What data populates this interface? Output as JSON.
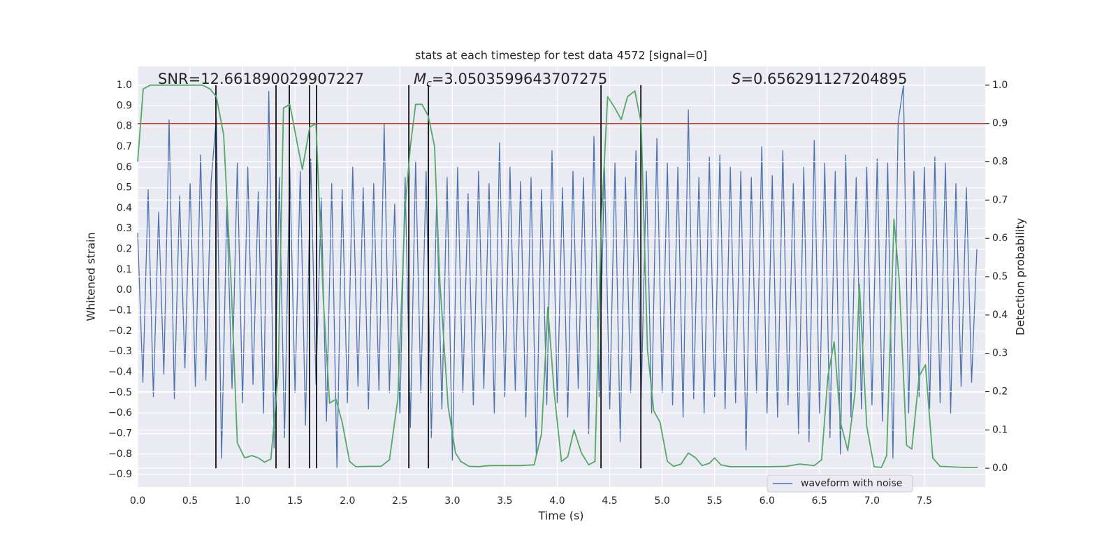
{
  "chart_data": {
    "type": "line",
    "title": "stats at each timestep for test data 4572 [signal=0]",
    "xlabel": "Time (s)",
    "ylabel": "Whitened strain",
    "y2label": "Detection probability",
    "annotations": [
      {
        "text": "SNR=12.661890029907227"
      },
      {
        "symbol": "M",
        "subscript": "c",
        "text": "=3.0503599643707275"
      },
      {
        "symbol": "S",
        "text": "=0.656291127204895"
      }
    ],
    "xlim": [
      0,
      8.08
    ],
    "ylim": [
      -0.961,
      1.092
    ],
    "y2lim": [
      -0.049,
      1.049
    ],
    "grid": true,
    "legend": "lower right",
    "xticks": [
      {
        "value": 0,
        "label": "0.0"
      },
      0.5,
      {
        "value": 1,
        "label": "1.0"
      },
      1.5,
      {
        "value": 2,
        "label": "2.0"
      },
      2.5,
      {
        "value": 3,
        "label": "3.0"
      },
      3.5,
      {
        "value": 4,
        "label": "4.0"
      },
      4.5,
      {
        "value": 5,
        "label": "5.0"
      },
      5.5,
      {
        "value": 6,
        "label": "6.0"
      },
      6.5,
      {
        "value": 7,
        "label": "7.0"
      },
      7.5
    ],
    "yticks": [
      {
        "value": 1,
        "label": "1.0"
      },
      0.9,
      0.8,
      0.7,
      0.6,
      0.5,
      0.4,
      0.3,
      0.2,
      0.1,
      {
        "value": 0,
        "label": "0.0"
      },
      {
        "value": -0.1,
        "label": "−0.1"
      },
      {
        "value": -0.2,
        "label": "−0.2"
      },
      {
        "value": -0.3,
        "label": "−0.3"
      },
      {
        "value": -0.4,
        "label": "−0.4"
      },
      {
        "value": -0.5,
        "label": "−0.5"
      },
      {
        "value": -0.6,
        "label": "−0.6"
      },
      {
        "value": -0.7,
        "label": "−0.7"
      },
      {
        "value": -0.8,
        "label": "−0.8"
      },
      {
        "value": -0.9,
        "label": "−0.9"
      }
    ],
    "y2ticks": [
      {
        "value": 1,
        "label": "1.0"
      },
      0.9,
      0.8,
      0.7,
      0.6,
      0.5,
      0.4,
      0.3,
      0.2,
      0.1,
      {
        "value": 0,
        "label": "0.0"
      }
    ],
    "threshold": {
      "value": 0.9,
      "axis": "y2",
      "color": "#c0392b"
    },
    "vlines": {
      "axis": "y2",
      "ymin": 0,
      "ymax": 1,
      "color": "#111111",
      "x": [
        0.746,
        1.319,
        1.446,
        1.639,
        1.706,
        2.585,
        2.772,
        4.417,
        4.797
      ]
    },
    "series": [
      {
        "name": "waveform with noise",
        "color": "#4c72b0",
        "x": [
          0,
          0.05,
          0.1,
          0.15,
          0.2,
          0.25,
          0.3,
          0.35,
          0.4,
          0.45,
          0.5,
          0.55,
          0.6,
          0.65,
          0.7,
          0.75,
          0.8,
          0.85,
          0.9,
          0.95,
          1,
          1.05,
          1.1,
          1.15,
          1.2,
          1.25,
          1.3,
          1.35,
          1.4,
          1.45,
          1.5,
          1.55,
          1.6,
          1.65,
          1.7,
          1.75,
          1.8,
          1.85,
          1.9,
          1.95,
          2,
          2.05,
          2.1,
          2.15,
          2.2,
          2.25,
          2.3,
          2.35,
          2.4,
          2.45,
          2.5,
          2.55,
          2.6,
          2.65,
          2.7,
          2.75,
          2.8,
          2.85,
          2.9,
          2.95,
          3,
          3.05,
          3.1,
          3.15,
          3.2,
          3.25,
          3.3,
          3.35,
          3.4,
          3.45,
          3.5,
          3.55,
          3.6,
          3.65,
          3.7,
          3.75,
          3.8,
          3.85,
          3.9,
          3.95,
          4,
          4.05,
          4.1,
          4.15,
          4.2,
          4.25,
          4.3,
          4.35,
          4.4,
          4.45,
          4.5,
          4.55,
          4.6,
          4.65,
          4.7,
          4.75,
          4.8,
          4.85,
          4.9,
          4.95,
          5,
          5.05,
          5.1,
          5.15,
          5.2,
          5.25,
          5.3,
          5.35,
          5.4,
          5.45,
          5.5,
          5.55,
          5.6,
          5.65,
          5.7,
          5.75,
          5.8,
          5.85,
          5.9,
          5.95,
          6,
          6.05,
          6.1,
          6.15,
          6.2,
          6.25,
          6.3,
          6.35,
          6.4,
          6.45,
          6.5,
          6.55,
          6.6,
          6.65,
          6.7,
          6.75,
          6.8,
          6.85,
          6.9,
          6.95,
          7,
          7.05,
          7.1,
          7.15,
          7.2,
          7.25,
          7.3,
          7.35,
          7.4,
          7.45,
          7.5,
          7.55,
          7.6,
          7.65,
          7.7,
          7.75,
          7.8,
          7.85,
          7.9,
          7.95,
          8
        ],
        "values": [
          0.28,
          -0.45,
          0.49,
          -0.52,
          0.38,
          -0.41,
          0.83,
          -0.53,
          0.46,
          -0.38,
          0.52,
          -0.47,
          0.66,
          -0.44,
          0.53,
          0.84,
          -0.82,
          0.41,
          -0.48,
          0.62,
          -0.55,
          0.6,
          -0.46,
          0.48,
          -0.6,
          0.97,
          -0.77,
          0.55,
          -0.72,
          0.6,
          -0.5,
          0.58,
          -0.66,
          0.64,
          -0.46,
          0.45,
          -0.64,
          0.52,
          -0.87,
          0.49,
          -0.55,
          0.6,
          -0.47,
          0.5,
          -0.58,
          0.52,
          -0.49,
          0.81,
          -0.5,
          0.42,
          -0.6,
          0.55,
          -0.67,
          0.63,
          -0.5,
          0.58,
          -0.72,
          0.45,
          -0.58,
          0.55,
          -0.83,
          0.6,
          -0.5,
          0.47,
          -0.56,
          0.58,
          -0.48,
          0.52,
          -0.6,
          0.72,
          -0.52,
          0.6,
          -0.49,
          0.53,
          -0.62,
          0.55,
          -0.81,
          0.49,
          -0.56,
          0.68,
          -0.55,
          0.5,
          -0.62,
          0.58,
          -0.48,
          0.55,
          -0.7,
          0.75,
          -0.52,
          0.6,
          -0.58,
          0.62,
          -0.74,
          0.55,
          -0.5,
          0.68,
          -0.53,
          0.58,
          -0.6,
          0.74,
          -0.5,
          0.62,
          -0.56,
          0.6,
          -0.62,
          0.88,
          -0.53,
          0.55,
          -0.6,
          0.65,
          -0.52,
          0.66,
          -0.58,
          0.6,
          -0.55,
          0.58,
          -0.78,
          0.55,
          -0.5,
          0.7,
          -0.6,
          0.56,
          -0.62,
          0.68,
          -0.56,
          0.52,
          -0.7,
          0.6,
          -0.74,
          0.73,
          -0.6,
          0.62,
          -0.72,
          0.58,
          -0.8,
          0.66,
          -0.62,
          0.55,
          -0.58,
          0.6,
          -0.56,
          0.64,
          -0.64,
          0.62,
          -0.82,
          0.82,
          1.0,
          -0.6,
          0.58,
          -0.52,
          0.6,
          -0.58,
          0.65,
          -0.55,
          0.62,
          -0.6,
          0.52,
          -0.47,
          0.5,
          -0.45,
          0.2
        ]
      },
      {
        "color": "#55a868",
        "axis": "y2",
        "x": [
          0,
          0.053,
          0.12,
          0.62,
          0.69,
          0.75,
          0.82,
          0.89,
          0.95,
          1.02,
          1.09,
          1.15,
          1.21,
          1.27,
          1.34,
          1.39,
          1.45,
          1.52,
          1.57,
          1.64,
          1.7,
          1.77,
          1.83,
          1.89,
          1.95,
          2.02,
          2.08,
          2.22,
          2.32,
          2.4,
          2.48,
          2.55,
          2.6,
          2.65,
          2.71,
          2.77,
          2.83,
          2.88,
          2.96,
          3.03,
          3.08,
          3.16,
          3.25,
          3.35,
          3.48,
          3.65,
          3.78,
          3.85,
          3.91,
          3.97,
          4.04,
          4.1,
          4.16,
          4.23,
          4.3,
          4.36,
          4.42,
          4.48,
          4.55,
          4.61,
          4.67,
          4.74,
          4.8,
          4.86,
          4.92,
          4.98,
          5.05,
          5.11,
          5.18,
          5.25,
          5.32,
          5.38,
          5.45,
          5.5,
          5.56,
          5.65,
          5.82,
          6.02,
          6.18,
          6.31,
          6.45,
          6.52,
          6.58,
          6.64,
          6.7,
          6.77,
          6.84,
          6.88,
          6.95,
          7.02,
          7.09,
          7.14,
          7.21,
          7.26,
          7.33,
          7.38,
          7.45,
          7.51,
          7.58,
          7.65,
          7.88,
          8.01
        ],
        "values": [
          0.8,
          0.99,
          1.0,
          1.0,
          0.99,
          0.97,
          0.87,
          0.49,
          0.066,
          0.027,
          0.033,
          0.027,
          0.016,
          0.024,
          0.25,
          0.94,
          0.95,
          0.85,
          0.78,
          0.89,
          0.9,
          0.44,
          0.17,
          0.18,
          0.12,
          0.018,
          0.004,
          0.005,
          0.005,
          0.022,
          0.18,
          0.68,
          0.84,
          0.95,
          0.95,
          0.92,
          0.84,
          0.49,
          0.16,
          0.04,
          0.018,
          0.005,
          0.004,
          0.007,
          0.007,
          0.007,
          0.009,
          0.09,
          0.42,
          0.2,
          0.018,
          0.03,
          0.1,
          0.04,
          0.009,
          0.018,
          0.64,
          0.97,
          0.94,
          0.91,
          0.97,
          0.985,
          0.9,
          0.31,
          0.15,
          0.12,
          0.018,
          0.005,
          0.011,
          0.04,
          0.027,
          0.007,
          0.013,
          0.027,
          0.009,
          0.004,
          0.004,
          0.004,
          0.005,
          0.011,
          0.007,
          0.022,
          0.24,
          0.33,
          0.12,
          0.046,
          0.2,
          0.48,
          0.11,
          0.004,
          0.002,
          0.033,
          0.65,
          0.49,
          0.06,
          0.05,
          0.24,
          0.27,
          0.027,
          0.005,
          0.002,
          0.002
        ]
      }
    ]
  }
}
